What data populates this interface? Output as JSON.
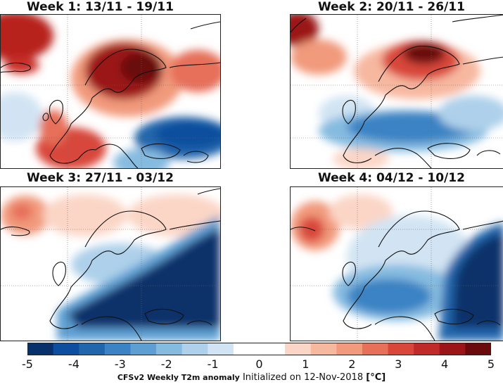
{
  "panels": [
    {
      "title": "Week 1: 13/11 - 19/11"
    },
    {
      "title": "Week 2: 20/11 - 26/11"
    },
    {
      "title": "Week 3: 27/11 - 03/12"
    },
    {
      "title": "Week 4: 04/12 - 10/12"
    }
  ],
  "colorbar": {
    "ticks": [
      "-5",
      "-4",
      "-3",
      "-2",
      "-1",
      "0",
      "1",
      "2",
      "3",
      "4",
      "5"
    ],
    "range": [
      -5,
      5
    ],
    "colors": [
      "#08306b",
      "#0d4f9e",
      "#2166ac",
      "#3b83c4",
      "#5d9fd2",
      "#86bbe0",
      "#aed0ea",
      "#d2e4f3",
      "#ffffff",
      "#ffffff",
      "#fbd6c6",
      "#f7b8a0",
      "#f19a7c",
      "#e6705a",
      "#d8473a",
      "#c02a28",
      "#9b1418",
      "#6a0a0d"
    ]
  },
  "caption": {
    "variable": "CFSv2 Weekly T2m anomaly",
    "init": "Initialized on 12-Nov-2018",
    "units": "[°C]"
  }
}
